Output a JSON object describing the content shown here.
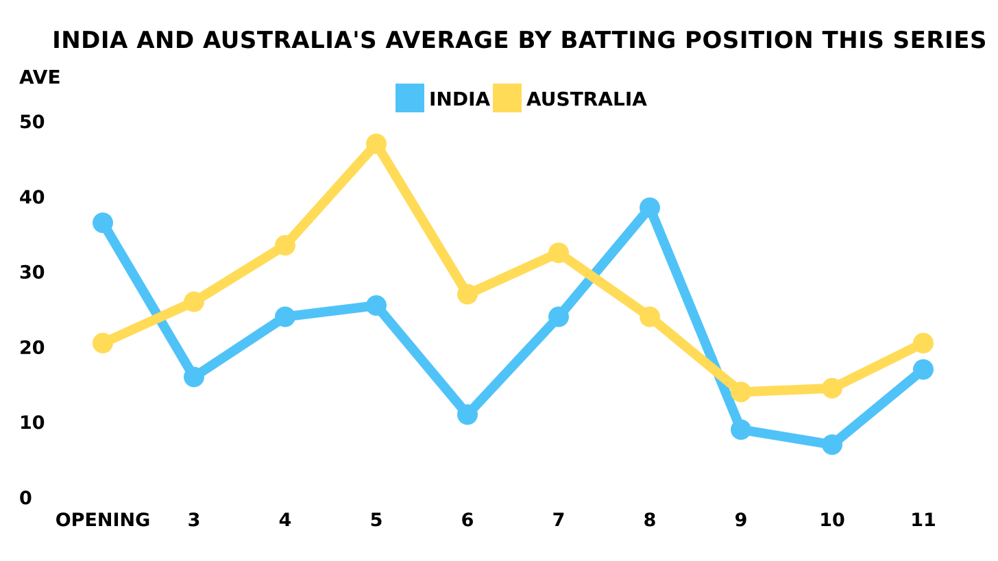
{
  "chart_data": {
    "type": "line",
    "title": "INDIA AND AUSTRALIA'S AVERAGE BY BATTING POSITION THIS SERIES",
    "ylabel": "AVE",
    "xlabel": "",
    "categories": [
      "OPENING",
      "3",
      "4",
      "5",
      "6",
      "7",
      "8",
      "9",
      "10",
      "11"
    ],
    "ylim": [
      0,
      50
    ],
    "yticks": [
      0,
      10,
      20,
      30,
      40,
      50
    ],
    "grid": false,
    "legend_position": "top-center",
    "series": [
      {
        "name": "INDIA",
        "color": "#4fc3f7",
        "values": [
          36.5,
          16,
          24,
          25.5,
          11,
          24,
          38.5,
          9,
          7,
          17
        ]
      },
      {
        "name": "AUSTRALIA",
        "color": "#ffdb58",
        "values": [
          20.5,
          26,
          33.5,
          47,
          27,
          32.5,
          24,
          14,
          14.5,
          20.5
        ]
      }
    ]
  }
}
